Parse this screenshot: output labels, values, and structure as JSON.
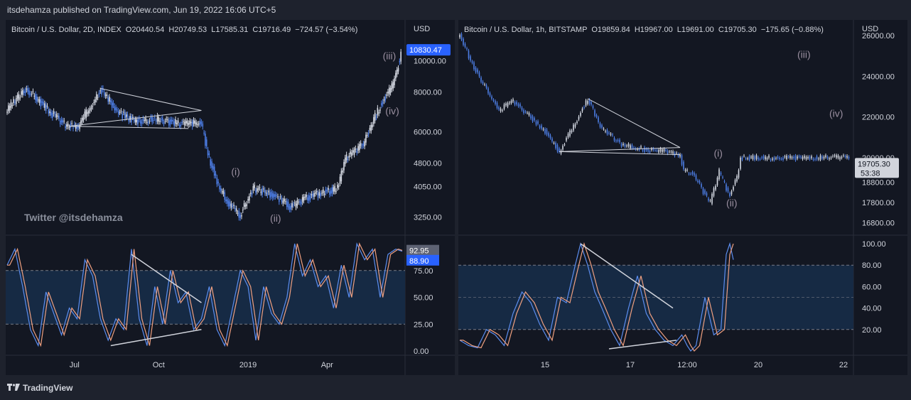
{
  "header": {
    "publisher_line": "itsdehamza published on TradingView.com, Jun 19, 2022 16:06 UTC+5"
  },
  "footer": {
    "brand": "TradingView"
  },
  "colors": {
    "background": "#131722",
    "frame": "#1e222d",
    "price_line": "#c8ccd6",
    "stoch_k": "#5b8def",
    "stoch_d": "#f0a080",
    "band_fill": "#162a44",
    "price_label": "#2962ff",
    "grey_label": "#5d6273",
    "wave_label": "#9a8fa0"
  },
  "chart_data": [
    {
      "type": "line",
      "panel": "left",
      "legend": "Bitcoin / U.S. Dollar, 2D, INDEX  O20440.54  H20749.53  L17585.31  C19716.49  −724.57 (−3.54%)",
      "currency": "USD",
      "watermark": "Twitter @itsdehamza",
      "scale": "log",
      "ylim": [
        2900,
        12000
      ],
      "price_ticks": [
        "10000.00",
        "8000.00",
        "6000.00",
        "4800.00",
        "4050.00",
        "3250.00"
      ],
      "price_tick_values": [
        10000,
        8000,
        6000,
        4800,
        4050,
        3250
      ],
      "last_price_label": "10830.47",
      "last_price_value": 10830,
      "time_ticks": [
        "Jul",
        "Oct",
        "2019",
        "Apr"
      ],
      "time_tick_idx": [
        52,
        117,
        186,
        247
      ],
      "n": 305,
      "price_points": [
        [
          0,
          7000
        ],
        [
          15,
          8200
        ],
        [
          30,
          7100
        ],
        [
          45,
          6300
        ],
        [
          55,
          6200
        ],
        [
          65,
          7300
        ],
        [
          72,
          8200
        ],
        [
          85,
          6900
        ],
        [
          100,
          6500
        ],
        [
          115,
          6600
        ],
        [
          130,
          6400
        ],
        [
          148,
          6400
        ],
        [
          150,
          6300
        ],
        [
          155,
          5100
        ],
        [
          162,
          4200
        ],
        [
          170,
          3600
        ],
        [
          180,
          3300
        ],
        [
          190,
          4000
        ],
        [
          200,
          3900
        ],
        [
          210,
          3700
        ],
        [
          220,
          3500
        ],
        [
          235,
          3800
        ],
        [
          255,
          4000
        ],
        [
          262,
          5000
        ],
        [
          275,
          5500
        ],
        [
          290,
          7500
        ],
        [
          298,
          8400
        ],
        [
          305,
          10830
        ]
      ],
      "wave_labels": [
        "(i)",
        "(ii)",
        "(iii)",
        "(iv)"
      ],
      "wave_label_at": [
        [
          173,
          4400
        ],
        [
          203,
          3150
        ],
        [
          290,
          10100
        ],
        [
          292,
          6800
        ]
      ],
      "trendlines": [
        [
          [
            48,
            6250
          ],
          [
            150,
            7000
          ]
        ],
        [
          [
            72,
            8200
          ],
          [
            150,
            7000
          ]
        ],
        [
          [
            48,
            6250
          ],
          [
            140,
            6150
          ]
        ]
      ],
      "oscillator": {
        "ticks": [
          "75.00",
          "50.00",
          "25.00",
          "0.00"
        ],
        "tick_values": [
          75,
          50,
          25,
          0
        ],
        "band": [
          25,
          75
        ],
        "k_label": "92.95",
        "k_value": 92.95,
        "d_label": "88.90",
        "d_value": 88.9,
        "k_points": [
          [
            0,
            80
          ],
          [
            6,
            95
          ],
          [
            12,
            60
          ],
          [
            18,
            20
          ],
          [
            24,
            5
          ],
          [
            30,
            55
          ],
          [
            36,
            35
          ],
          [
            42,
            15
          ],
          [
            48,
            40
          ],
          [
            54,
            30
          ],
          [
            60,
            85
          ],
          [
            66,
            70
          ],
          [
            72,
            30
          ],
          [
            78,
            10
          ],
          [
            84,
            30
          ],
          [
            90,
            20
          ],
          [
            96,
            95
          ],
          [
            102,
            30
          ],
          [
            108,
            5
          ],
          [
            114,
            60
          ],
          [
            120,
            25
          ],
          [
            126,
            75
          ],
          [
            132,
            45
          ],
          [
            138,
            55
          ],
          [
            144,
            20
          ],
          [
            150,
            30
          ],
          [
            156,
            60
          ],
          [
            162,
            20
          ],
          [
            168,
            5
          ],
          [
            174,
            40
          ],
          [
            180,
            75
          ],
          [
            186,
            60
          ],
          [
            192,
            10
          ],
          [
            198,
            60
          ],
          [
            204,
            35
          ],
          [
            210,
            25
          ],
          [
            216,
            50
          ],
          [
            222,
            100
          ],
          [
            228,
            70
          ],
          [
            234,
            85
          ],
          [
            240,
            60
          ],
          [
            246,
            70
          ],
          [
            252,
            40
          ],
          [
            258,
            80
          ],
          [
            264,
            50
          ],
          [
            270,
            100
          ],
          [
            276,
            85
          ],
          [
            282,
            95
          ],
          [
            288,
            50
          ],
          [
            294,
            90
          ],
          [
            300,
            95
          ],
          [
            305,
            93
          ]
        ],
        "trendlines": [
          [
            [
              96,
              90
            ],
            [
              150,
              45
            ]
          ],
          [
            [
              80,
              5
            ],
            [
              150,
              20
            ]
          ]
        ]
      }
    },
    {
      "type": "line",
      "panel": "right",
      "legend": "Bitcoin / U.S. Dollar, 1h, BITSTAMP  O19859.84  H19967.00  L19691.00  C19705.30  −175.65 (−0.88%)",
      "currency": "USD",
      "scale": "linear",
      "ylim": [
        16300,
        26000
      ],
      "price_ticks": [
        "26000.00",
        "24000.00",
        "22000.00",
        "20000.00",
        "18800.00",
        "17800.00",
        "16800.00"
      ],
      "price_tick_values": [
        26000,
        24000,
        22000,
        20000,
        18800,
        17800,
        16800
      ],
      "last_price_label": "19705.30",
      "last_price_value": 19705.3,
      "countdown_label": "53:38",
      "time_ticks": [
        "15",
        "17",
        "12:00",
        "20",
        "22"
      ],
      "time_tick_idx": [
        48,
        96,
        128,
        168,
        216
      ],
      "n": 220,
      "price_points": [
        [
          0,
          26000
        ],
        [
          6,
          24800
        ],
        [
          14,
          23500
        ],
        [
          22,
          22300
        ],
        [
          30,
          22800
        ],
        [
          40,
          22000
        ],
        [
          48,
          21300
        ],
        [
          56,
          20300
        ],
        [
          66,
          21900
        ],
        [
          72,
          22900
        ],
        [
          80,
          21400
        ],
        [
          92,
          20600
        ],
        [
          104,
          20400
        ],
        [
          116,
          20300
        ],
        [
          124,
          20100
        ],
        [
          126,
          19400
        ],
        [
          132,
          19100
        ],
        [
          138,
          18200
        ],
        [
          141,
          17800
        ],
        [
          146,
          19300
        ],
        [
          150,
          18500
        ],
        [
          152,
          18200
        ],
        [
          156,
          19000
        ],
        [
          158,
          20000
        ]
      ],
      "wave_labels": [
        "(i)",
        "(ii)",
        "(iii)",
        "(iv)"
      ],
      "wave_label_at": [
        [
          143,
          20050
        ],
        [
          150,
          17600
        ],
        [
          190,
          24900
        ],
        [
          208,
          22000
        ]
      ],
      "trendlines": [
        [
          [
            56,
            20300
          ],
          [
            124,
            20500
          ]
        ],
        [
          [
            72,
            22900
          ],
          [
            124,
            20500
          ]
        ],
        [
          [
            56,
            20300
          ],
          [
            124,
            20150
          ]
        ]
      ],
      "oscillator": {
        "ticks": [
          "100.00",
          "80.00",
          "60.00",
          "40.00",
          "20.00"
        ],
        "tick_values": [
          100,
          80,
          60,
          40,
          20
        ],
        "band": [
          20,
          80
        ],
        "k_points": [
          [
            0,
            10
          ],
          [
            5,
            5
          ],
          [
            10,
            3
          ],
          [
            15,
            20
          ],
          [
            20,
            15
          ],
          [
            25,
            5
          ],
          [
            30,
            35
          ],
          [
            35,
            55
          ],
          [
            40,
            45
          ],
          [
            45,
            25
          ],
          [
            50,
            10
          ],
          [
            55,
            50
          ],
          [
            60,
            45
          ],
          [
            65,
            80
          ],
          [
            68,
            100
          ],
          [
            72,
            80
          ],
          [
            76,
            55
          ],
          [
            80,
            40
          ],
          [
            85,
            20
          ],
          [
            90,
            5
          ],
          [
            95,
            40
          ],
          [
            100,
            70
          ],
          [
            105,
            35
          ],
          [
            110,
            20
          ],
          [
            115,
            10
          ],
          [
            120,
            5
          ],
          [
            125,
            15
          ],
          [
            128,
            5
          ],
          [
            130,
            0
          ],
          [
            133,
            5
          ],
          [
            138,
            50
          ],
          [
            143,
            15
          ],
          [
            147,
            20
          ],
          [
            150,
            90
          ],
          [
            152,
            100
          ],
          [
            154,
            85
          ]
        ],
        "trendlines": [
          [
            [
              68,
              100
            ],
            [
              120,
              40
            ]
          ],
          [
            [
              84,
              2
            ],
            [
              122,
              10
            ]
          ]
        ]
      }
    }
  ]
}
